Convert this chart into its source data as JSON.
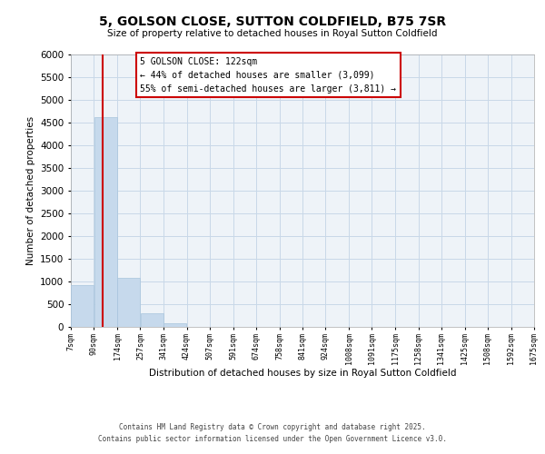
{
  "title": "5, GOLSON CLOSE, SUTTON COLDFIELD, B75 7SR",
  "subtitle": "Size of property relative to detached houses in Royal Sutton Coldfield",
  "xlabel": "Distribution of detached houses by size in Royal Sutton Coldfield",
  "ylabel": "Number of detached properties",
  "bar_color": "#c6d9ec",
  "bar_edge_color": "#a8c4dc",
  "grid_color": "#c8d8e8",
  "bg_color": "#eef3f8",
  "annotation_box_color": "#cc0000",
  "property_line_color": "#cc0000",
  "property_size": 122,
  "annotation_title": "5 GOLSON CLOSE: 122sqm",
  "annotation_line1": "← 44% of detached houses are smaller (3,099)",
  "annotation_line2": "55% of semi-detached houses are larger (3,811) →",
  "footer_line1": "Contains HM Land Registry data © Crown copyright and database right 2025.",
  "footer_line2": "Contains public sector information licensed under the Open Government Licence v3.0.",
  "bin_edges": [
    7,
    90,
    174,
    257,
    341,
    424,
    507,
    591,
    674,
    758,
    841,
    924,
    1008,
    1091,
    1175,
    1258,
    1341,
    1425,
    1508,
    1592,
    1675
  ],
  "bin_labels": [
    "7sqm",
    "90sqm",
    "174sqm",
    "257sqm",
    "341sqm",
    "424sqm",
    "507sqm",
    "591sqm",
    "674sqm",
    "758sqm",
    "841sqm",
    "924sqm",
    "1008sqm",
    "1091sqm",
    "1175sqm",
    "1258sqm",
    "1341sqm",
    "1425sqm",
    "1508sqm",
    "1592sqm",
    "1675sqm"
  ],
  "bar_heights": [
    930,
    4620,
    1080,
    295,
    85,
    0,
    0,
    0,
    0,
    0,
    0,
    0,
    0,
    0,
    0,
    0,
    0,
    0,
    0,
    0
  ],
  "ylim": [
    0,
    6000
  ],
  "yticks": [
    0,
    500,
    1000,
    1500,
    2000,
    2500,
    3000,
    3500,
    4000,
    4500,
    5000,
    5500,
    6000
  ]
}
